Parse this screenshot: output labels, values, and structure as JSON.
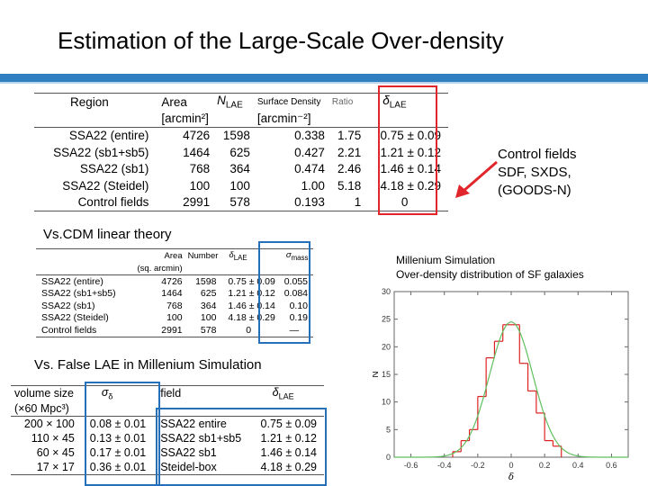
{
  "title": "Estimation of the Large-Scale Over-density",
  "colors": {
    "accent_bar": "#2f7fc1",
    "red": "#e1262b",
    "blue": "#2570b8",
    "green": "#5fbf5f"
  },
  "table1": {
    "headers": {
      "region": "Region",
      "area": "Area",
      "area_unit": "[arcmin²]",
      "n_lae": "N",
      "n_lae_sub": "LAE",
      "surface_density": "Surface Density",
      "surface_density_unit": "[arcmin⁻²]",
      "ratio": "Ratio",
      "delta": "δ",
      "delta_sub": "LAE"
    },
    "rows": [
      {
        "region": "SSA22 (entire)",
        "area": "4726",
        "n": "1598",
        "density": "0.338",
        "ratio": "1.75",
        "delta": "0.75 ± 0.09"
      },
      {
        "region": "SSA22 (sb1+sb5)",
        "area": "1464",
        "n": "625",
        "density": "0.427",
        "ratio": "2.21",
        "delta": "1.21 ± 0.12"
      },
      {
        "region": "SSA22 (sb1)",
        "area": "768",
        "n": "364",
        "density": "0.474",
        "ratio": "2.46",
        "delta": "1.46 ± 0.14"
      },
      {
        "region": "SSA22 (Steidel)",
        "area": "100",
        "n": "100",
        "density": "1.00",
        "ratio": "5.18",
        "delta": "4.18 ± 0.29"
      },
      {
        "region": "Control fields",
        "area": "2991",
        "n": "578",
        "density": "0.193",
        "ratio": "1",
        "delta": "0"
      }
    ]
  },
  "control_note": {
    "line1": "Control fields",
    "line2": "SDF, SXDS,",
    "line3": "(GOODS-N)"
  },
  "vs_cdm": "Vs.CDM linear theory",
  "table2": {
    "headers": {
      "area": "Area",
      "area_unit": "(sq. arcmin)",
      "number": "Number",
      "delta": "δ",
      "delta_sub": "LAE",
      "sigma": "σ",
      "sigma_sub": "mass"
    },
    "rows": [
      {
        "region": "SSA22 (entire)",
        "area": "4726",
        "number": "1598",
        "delta": "0.75 ± 0.09",
        "sigma": "0.055"
      },
      {
        "region": "SSA22 (sb1+sb5)",
        "area": "1464",
        "number": "625",
        "delta": "1.21 ± 0.12",
        "sigma": "0.084"
      },
      {
        "region": "SSA22 (sb1)",
        "area": "768",
        "number": "364",
        "delta": "1.46 ± 0.14",
        "sigma": "0.10"
      },
      {
        "region": "SSA22 (Steidel)",
        "area": "100",
        "number": "100",
        "delta": "4.18 ± 0.29",
        "sigma": "0.19"
      },
      {
        "region": "Control fields",
        "area": "2991",
        "number": "578",
        "delta": "0",
        "sigma": "—"
      }
    ]
  },
  "vs_false": "Vs. False LAE in Millenium Simulation",
  "table3": {
    "headers": {
      "volume": "volume size",
      "volume_unit": "(×60 Mpc³)",
      "sigma": "σ",
      "sigma_sub": "δ",
      "field": "field",
      "delta": "δ",
      "delta_sub": "LAE"
    },
    "rows": [
      {
        "volume": "200 × 100",
        "sigma": "0.08 ± 0.01",
        "field": "SSA22 entire",
        "delta": "0.75 ± 0.09"
      },
      {
        "volume": "110 × 45",
        "sigma": "0.13 ± 0.01",
        "field": "SSA22 sb1+sb5",
        "delta": "1.21 ± 0.12"
      },
      {
        "volume": "60 × 45",
        "sigma": "0.17 ± 0.01",
        "field": "SSA22 sb1",
        "delta": "1.46 ± 0.14"
      },
      {
        "volume": "17 × 17",
        "sigma": "0.36 ± 0.01",
        "field": "Steidel-box",
        "delta": "4.18 ± 0.29"
      }
    ]
  },
  "millenium": {
    "line1": "Millenium Simulation",
    "line2": "Over-density distribution of SF galaxies"
  },
  "chart_data": {
    "type": "bar",
    "xlabel": "δ",
    "ylabel": "N",
    "xlim": [
      -0.7,
      0.7
    ],
    "ylim": [
      0,
      30
    ],
    "xticks": [
      "-0.6",
      "-0.4",
      "-0.2",
      "0",
      "0.2",
      "0.4",
      "0.6"
    ],
    "yticks": [
      "0",
      "5",
      "10",
      "15",
      "20",
      "25",
      "30"
    ],
    "bin_edges": [
      -0.35,
      -0.3,
      -0.25,
      -0.2,
      -0.15,
      -0.1,
      -0.05,
      0.0,
      0.05,
      0.1,
      0.15,
      0.2,
      0.25,
      0.3
    ],
    "values": [
      1,
      3,
      5,
      11,
      18,
      21,
      24,
      24,
      17,
      12,
      8,
      3,
      2
    ],
    "fit_gaussian": {
      "amplitude": 24.5,
      "mean": 0.0,
      "sigma": 0.13
    },
    "grid": false
  }
}
